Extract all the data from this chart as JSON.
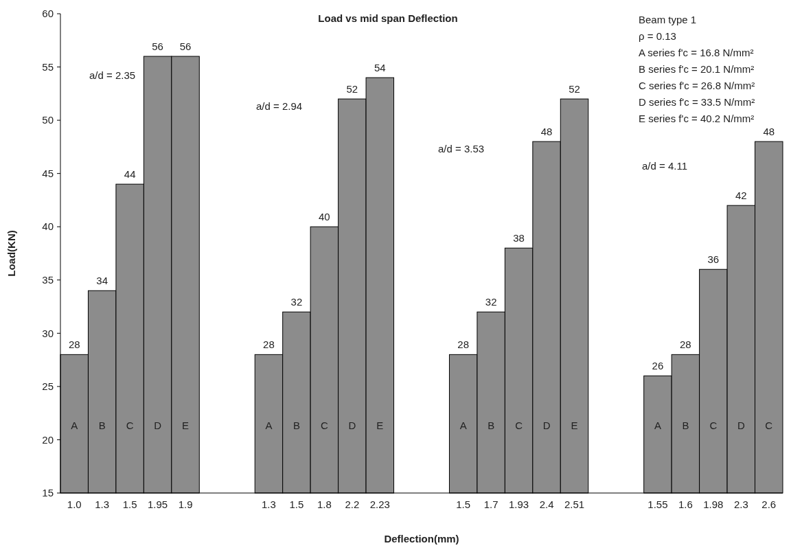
{
  "chart_data": {
    "type": "bar",
    "title": "Load vs mid span Deflection",
    "xlabel": "Deflection(mm)",
    "ylabel": "Load(KN)",
    "categories": [
      "1.0",
      "1.3",
      "1.5",
      "1.95",
      "1.9",
      null,
      null,
      "1.3",
      "1.5",
      "1.8",
      "2.2",
      "2.23",
      null,
      null,
      "1.5",
      "1.7",
      "1.93",
      "2.4",
      "2.51",
      null,
      null,
      "1.55",
      "1.6",
      "1.98",
      "2.3",
      "2.6"
    ],
    "values": [
      28,
      34,
      44,
      56,
      56,
      null,
      null,
      28,
      32,
      40,
      52,
      54,
      null,
      null,
      28,
      32,
      38,
      48,
      52,
      null,
      null,
      26,
      28,
      36,
      42,
      48
    ],
    "color": "#8c8c8c",
    "ylim": [
      15,
      60
    ],
    "yticks": [
      15,
      20,
      25,
      30,
      35,
      40,
      45,
      50,
      55,
      60
    ],
    "grid": false,
    "data_labels": true,
    "annotations": [
      "A",
      "B",
      "C",
      "D",
      "E",
      "A",
      "B",
      "C",
      "D",
      "E",
      "A",
      "B",
      "C",
      "D",
      "E",
      "A",
      "B",
      "C",
      "D",
      "C",
      "a/d = 2.35",
      "a/d = 2.94",
      "a/d = 3.53",
      "a/d = 4.11",
      "Beam type 1",
      "ρ = 0.13",
      "A series f'c = 16.8 N/mm²",
      "B series f'c = 20.1 N/mm²",
      "C series f'c = 26.8 N/mm²",
      "D series f'c = 33.5 N/mm²",
      "E series f'c = 40.2 N/mm²"
    ]
  }
}
